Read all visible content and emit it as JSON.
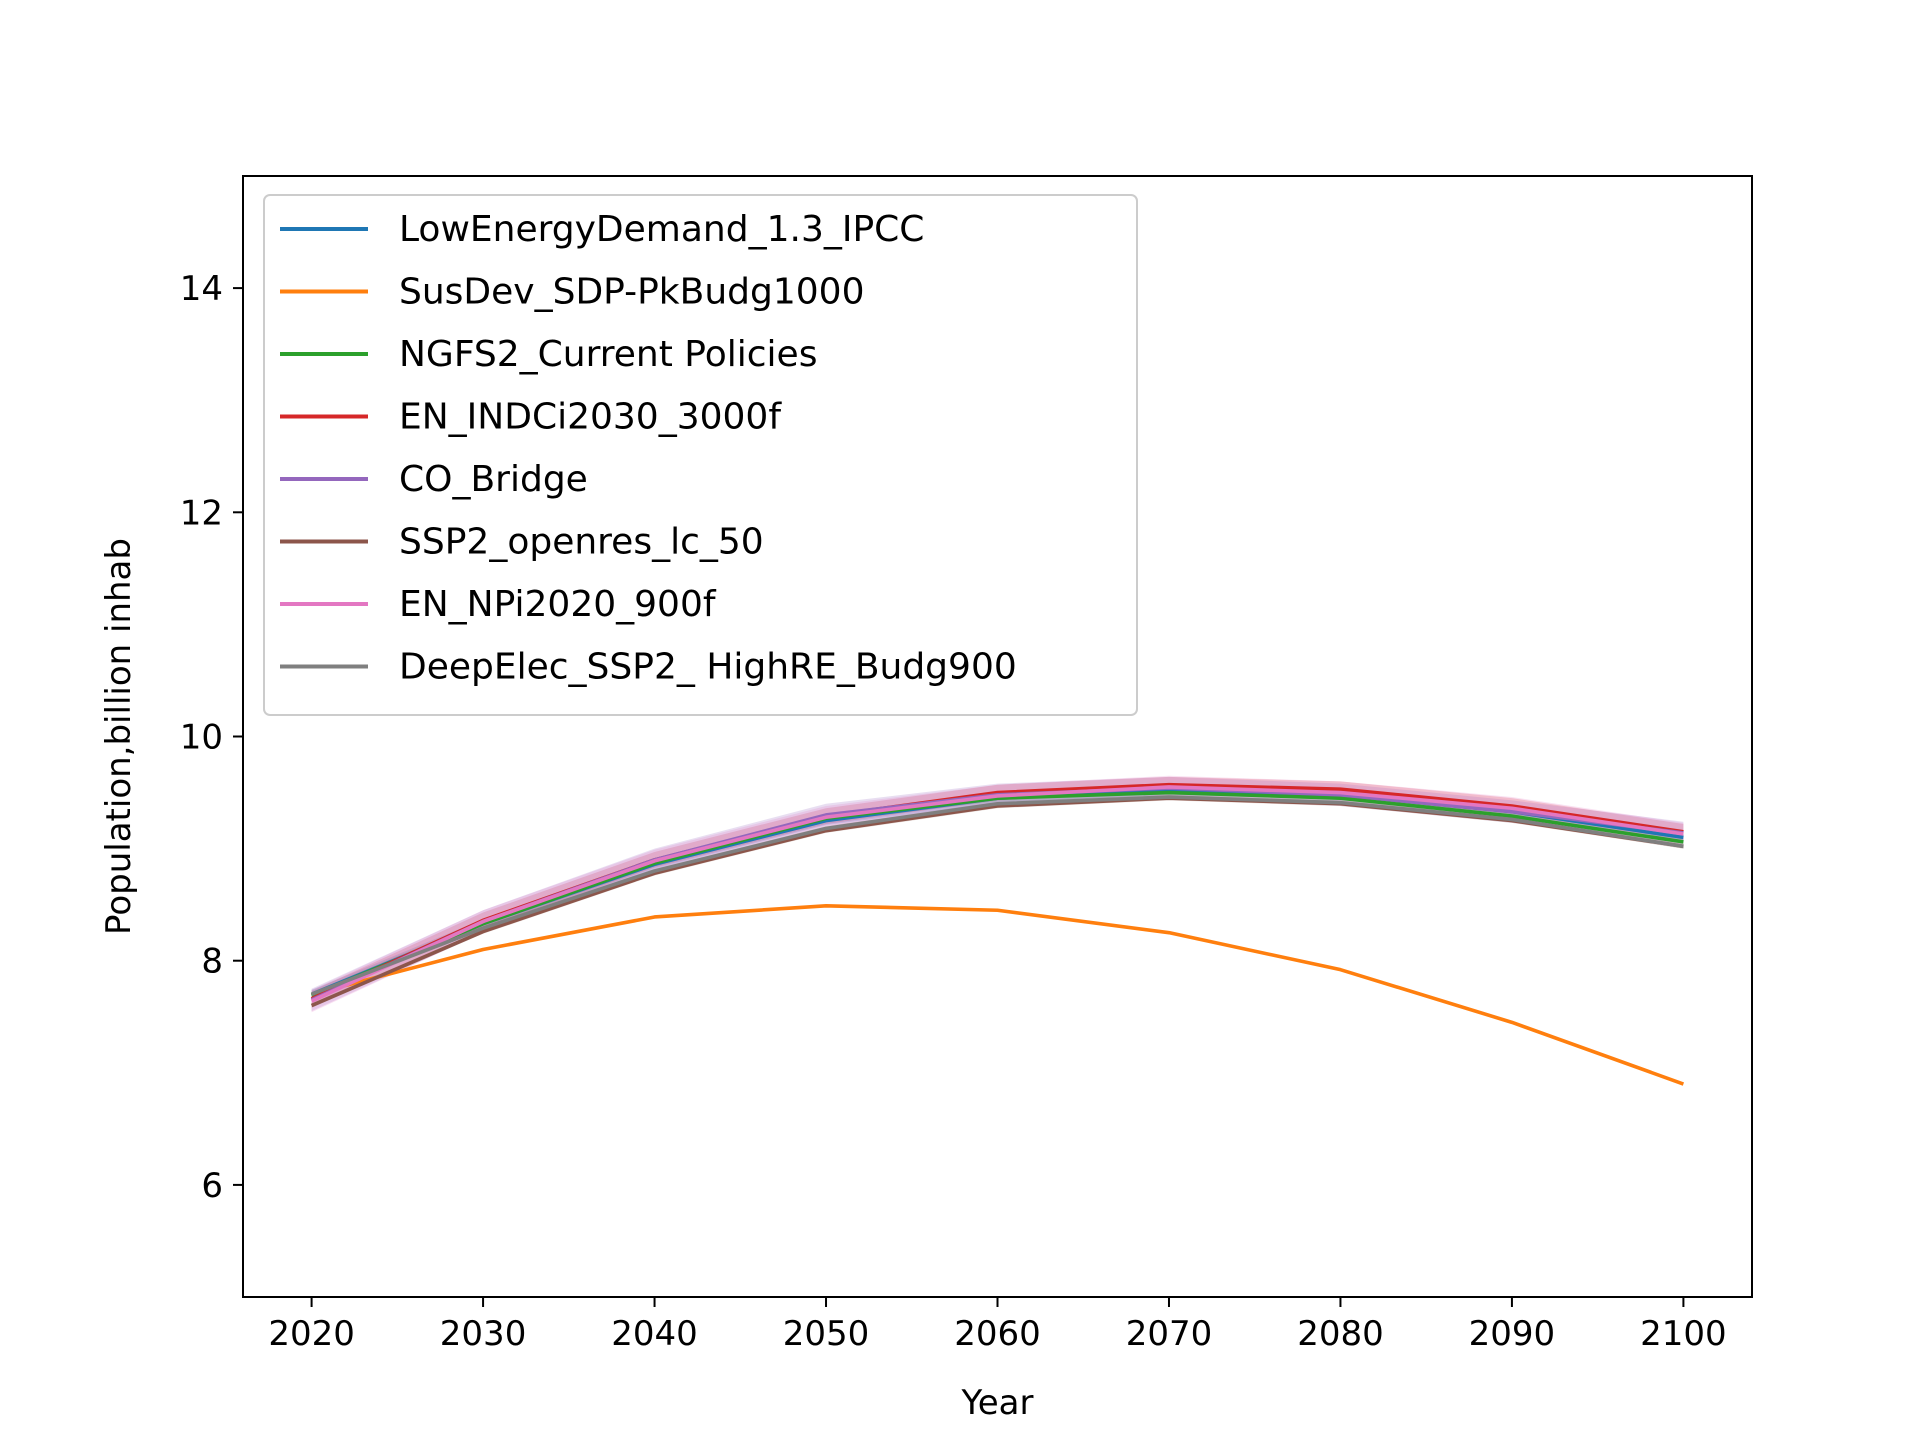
{
  "chart_data": {
    "type": "line",
    "title": "",
    "xlabel": "Year",
    "ylabel": "Population,billion inhab",
    "x": [
      2020,
      2030,
      2040,
      2050,
      2060,
      2070,
      2080,
      2090,
      2100
    ],
    "xlim": [
      2016,
      2104
    ],
    "ylim": [
      5,
      15
    ],
    "xticks": [
      2020,
      2030,
      2040,
      2050,
      2060,
      2070,
      2080,
      2090,
      2100
    ],
    "yticks": [
      6,
      8,
      10,
      12,
      14
    ],
    "grid": false,
    "legend": "top-left",
    "series": [
      {
        "name": "LowEnergyDemand_1.3_IPCC",
        "color": "#1f77b4",
        "values": [
          7.7,
          8.33,
          8.86,
          9.25,
          9.45,
          9.52,
          9.48,
          9.33,
          9.1
        ],
        "band": 0.04
      },
      {
        "name": "SusDev_SDP-PkBudg1000",
        "color": "#ff7f0e",
        "values": [
          7.7,
          8.1,
          8.39,
          8.49,
          8.45,
          8.25,
          7.92,
          7.45,
          6.9
        ],
        "band": 0.0
      },
      {
        "name": "NGFS2_Current Policies",
        "color": "#2ca02c",
        "values": [
          7.69,
          8.33,
          8.87,
          9.27,
          9.45,
          9.5,
          9.45,
          9.29,
          9.06
        ],
        "band": 0.03
      },
      {
        "name": "EN_INDCi2030_3000f",
        "color": "#d62728",
        "values": [
          7.66,
          8.36,
          8.9,
          9.29,
          9.5,
          9.57,
          9.53,
          9.38,
          9.15
        ],
        "band": 0.07
      },
      {
        "name": "CO_Bridge",
        "color": "#9467bd",
        "values": [
          7.65,
          8.35,
          8.9,
          9.3,
          9.48,
          9.54,
          9.48,
          9.33,
          9.14
        ],
        "band": 0.1
      },
      {
        "name": "SSP2_openres_lc_50",
        "color": "#8c564b",
        "values": [
          7.6,
          8.26,
          8.78,
          9.16,
          9.38,
          9.45,
          9.4,
          9.25,
          9.02
        ],
        "band": 0.02
      },
      {
        "name": "EN_NPi2020_900f",
        "color": "#e377c2",
        "values": [
          7.64,
          8.35,
          8.89,
          9.28,
          9.47,
          9.55,
          9.5,
          9.36,
          9.13
        ],
        "band": 0.1
      },
      {
        "name": "DeepElec_SSP2_ HighRE_Budg900",
        "color": "#7f7f7f",
        "values": [
          7.7,
          8.29,
          8.8,
          9.18,
          9.4,
          9.46,
          9.41,
          9.26,
          9.02
        ],
        "band": 0.02
      }
    ]
  }
}
